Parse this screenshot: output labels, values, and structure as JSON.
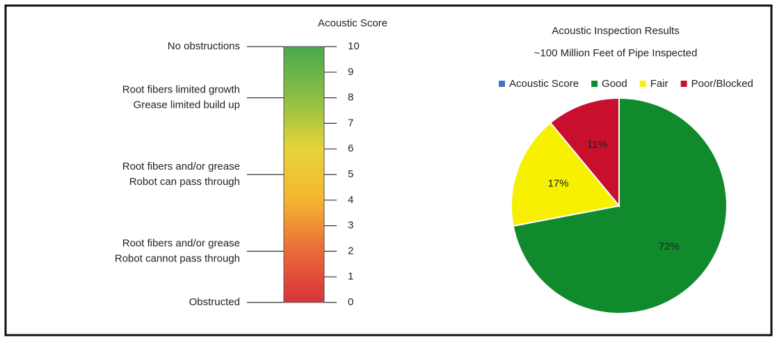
{
  "chart_data": [
    {
      "type": "colorscale",
      "title": "Acoustic Score",
      "ylim": [
        0,
        10
      ],
      "yticks": [
        0,
        1,
        2,
        3,
        4,
        5,
        6,
        7,
        8,
        9,
        10
      ],
      "colors": [
        "#d8323a",
        "#ea6a3a",
        "#f5b530",
        "#e8d43a",
        "#8bbf45",
        "#4aa84f"
      ],
      "annotations": [
        {
          "value": 10,
          "text": [
            "No obstructions"
          ]
        },
        {
          "value": 8,
          "text": [
            "Root fibers limited growth",
            "Grease limited build up"
          ]
        },
        {
          "value": 5,
          "text": [
            "Root fibers and/or grease",
            "Robot can pass through"
          ]
        },
        {
          "value": 2,
          "text": [
            "Root fibers and/or grease",
            "Robot cannot pass through"
          ]
        },
        {
          "value": 0,
          "text": [
            "Obstructed"
          ]
        }
      ]
    },
    {
      "type": "pie",
      "title": "Acoustic Inspection Results",
      "subtitle": "~100 Million Feet of Pipe Inspected",
      "categories": [
        "Acoustic Score",
        "Good",
        "Fair",
        "Poor/Blocked"
      ],
      "values": [
        null,
        72,
        17,
        11
      ],
      "value_labels": [
        null,
        "72%",
        "17%",
        "11%"
      ],
      "colors": [
        "#4472c4",
        "#118a2e",
        "#f7f000",
        "#c8102e"
      ],
      "legend": "top"
    }
  ]
}
